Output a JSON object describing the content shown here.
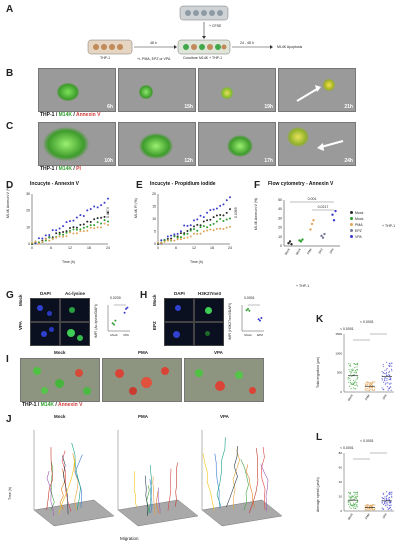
{
  "panels": {
    "A": "A",
    "B": "B",
    "C": "C",
    "D": "D",
    "E": "E",
    "F": "F",
    "G": "G",
    "H": "H",
    "I": "I",
    "J": "J",
    "K": "K",
    "L": "L"
  },
  "schema": {
    "cfse": "+ CFSE",
    "thp1_label": "THP-1",
    "treat": "+/- PMA, EPZ or VPA",
    "step1": "48 h",
    "cocult": "Coculture M14K + THP-1",
    "step2": "24 - 48 h",
    "end": "M14K Apoptosis"
  },
  "rowB": {
    "times": [
      "6h",
      "15h",
      "19h",
      "21h"
    ],
    "legend": {
      "a": "THP-1",
      "sep1": " / ",
      "b": "M14K",
      "sep2": " / ",
      "c": "Annexin V"
    }
  },
  "rowC": {
    "times": [
      "10h",
      "12h",
      "17h",
      "24h"
    ],
    "legend": {
      "a": "THP-1",
      "sep1": " / ",
      "b": "M14K",
      "sep2": " / ",
      "c": "PI"
    }
  },
  "chartD": {
    "title": "Incucyte - Annexin V",
    "ylabel": "M14K Annexin V (%)",
    "xlabel": "Time (h)",
    "p": "0.0674",
    "xticks": [
      "0",
      "6",
      "12",
      "18",
      "24"
    ],
    "yticks": [
      "0",
      "10",
      "20",
      "30"
    ]
  },
  "chartE": {
    "title": "Incucyte - Propidium iodide",
    "ylabel": "M14K PI (%)",
    "xlabel": "Time (h)",
    "p": "0.0369",
    "xticks": [
      "0",
      "6",
      "12",
      "18",
      "24"
    ],
    "yticks": [
      "0",
      "5",
      "10",
      "15",
      "20"
    ]
  },
  "chartF": {
    "title": "Flow cytometry - Annexin V",
    "ylabel": "M14K Annexin V (%)",
    "yticks": [
      "0",
      "10",
      "20",
      "30",
      "40",
      "50"
    ],
    "xcats": [
      "Mock",
      "Mock",
      "PMA",
      "EPZ",
      "VPA"
    ],
    "thp1": "+ THP-1",
    "thp1_side": "+ THP-1",
    "p1": "0.0217",
    "p2": "0.001",
    "legend": [
      "Mock",
      "Mock",
      "PMA",
      "EPZ",
      "VPA"
    ]
  },
  "panelG": {
    "dapi": "DAPI",
    "marker": "Ac-lysine",
    "mock": "Mock",
    "vpa": "VPA",
    "ylabel": "rMFI (Ac-lysine/DAPI)",
    "p": "0.0239",
    "xcats": [
      "Mock",
      "VPA"
    ]
  },
  "panelH": {
    "dapi": "DAPI",
    "marker": "H3K27me3",
    "mock": "Mock",
    "epz": "EPZ",
    "ylabel": "rMFI (H3K27me3/DAPI)",
    "p": "0.0001",
    "xcats": [
      "Mock",
      "EPZ"
    ]
  },
  "panelI": {
    "cols": [
      "Mock",
      "PMA",
      "VPA"
    ],
    "legend": {
      "a": "THP-1",
      "sep1": " / ",
      "b": "M14K",
      "sep2": " / ",
      "c": "Annexin V"
    }
  },
  "panelJ": {
    "cols": [
      "Mock",
      "PMA",
      "VPA"
    ],
    "ylabel": "Time (h)",
    "xlabel": "Migration"
  },
  "panelK": {
    "ylabel": "Total migration (µm)",
    "yticks": [
      "0",
      "500",
      "1000",
      "1500"
    ],
    "xcats": [
      "Mock",
      "PMA",
      "VPA"
    ],
    "p1": "< 0.0001",
    "p2": "< 0.0001"
  },
  "panelL": {
    "ylabel": "Average speed (µm/h)",
    "yticks": [
      "0",
      "20",
      "40",
      "60",
      "80"
    ],
    "xcats": [
      "Mock",
      "PMA",
      "VPA"
    ],
    "p1": "< 0.0001",
    "p2": "< 0.0001"
  },
  "colors": {
    "mock": "#2a2a2a",
    "pma": "#e1a55a",
    "epz": "#7a7a9a",
    "vpa": "#3b3ccf",
    "green": "#2e9e2e",
    "red": "#d23b3b"
  }
}
